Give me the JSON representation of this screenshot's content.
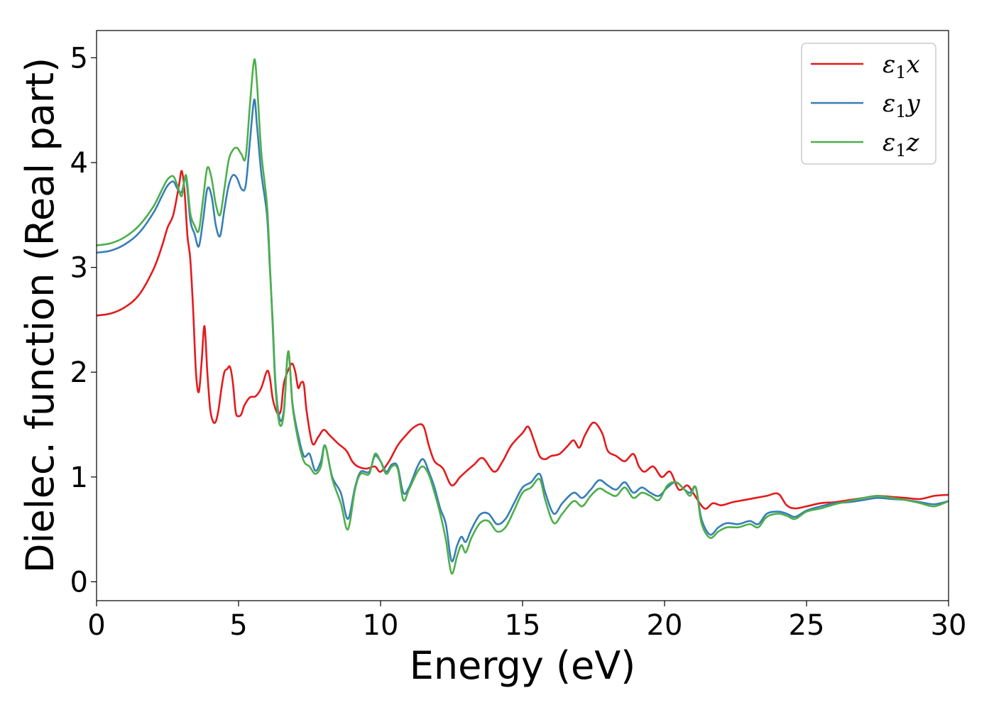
{
  "chart_data": {
    "type": "line",
    "title": "",
    "xlabel": "Energy (eV)",
    "ylabel": "Dielec. function (Real part)",
    "xlim": [
      0,
      30
    ],
    "ylim": [
      -0.18,
      5.26
    ],
    "xticks": [
      0,
      5,
      10,
      15,
      20,
      25,
      30
    ],
    "yticks": [
      0,
      1,
      2,
      3,
      4,
      5
    ],
    "grid": false,
    "legend_position": "top-right",
    "series": [
      {
        "name_base": "ε",
        "name_sub": "1",
        "name_suffix": "x",
        "color": "#e41a1c",
        "x": [
          0,
          0.5,
          1,
          1.5,
          2,
          2.3,
          2.5,
          2.7,
          2.9,
          3.0,
          3.1,
          3.2,
          3.3,
          3.4,
          3.5,
          3.6,
          3.7,
          3.8,
          3.9,
          4.0,
          4.1,
          4.2,
          4.3,
          4.4,
          4.5,
          4.6,
          4.7,
          4.8,
          4.9,
          5.0,
          5.1,
          5.2,
          5.4,
          5.6,
          5.8,
          6.0,
          6.1,
          6.2,
          6.3,
          6.4,
          6.5,
          6.6,
          6.8,
          6.9,
          7.0,
          7.1,
          7.2,
          7.3,
          7.4,
          7.6,
          7.8,
          8.0,
          8.2,
          8.5,
          8.8,
          9.0,
          9.2,
          9.5,
          9.8,
          10.0,
          10.3,
          10.6,
          10.9,
          11.2,
          11.5,
          11.7,
          11.9,
          12.2,
          12.5,
          12.8,
          13.0,
          13.3,
          13.6,
          14.0,
          14.3,
          14.6,
          15.0,
          15.2,
          15.4,
          15.6,
          15.8,
          16.0,
          16.3,
          16.6,
          16.8,
          17.0,
          17.2,
          17.5,
          17.8,
          18.0,
          18.3,
          18.6,
          18.9,
          19.1,
          19.3,
          19.6,
          19.9,
          20.2,
          20.5,
          20.8,
          21.0,
          21.4,
          21.7,
          22.0,
          22.4,
          22.8,
          23.2,
          23.6,
          24.0,
          24.3,
          24.6,
          25.0,
          25.5,
          26.0,
          26.5,
          27.0,
          27.5,
          28.0,
          28.5,
          29.0,
          29.5,
          30.0
        ],
        "y": [
          2.54,
          2.56,
          2.62,
          2.74,
          2.98,
          3.2,
          3.38,
          3.5,
          3.78,
          3.92,
          3.72,
          3.3,
          3.08,
          2.6,
          2.0,
          1.81,
          2.1,
          2.44,
          2.0,
          1.65,
          1.53,
          1.53,
          1.65,
          1.85,
          2.0,
          2.03,
          2.05,
          1.9,
          1.62,
          1.58,
          1.6,
          1.68,
          1.76,
          1.77,
          1.85,
          2.01,
          1.95,
          1.75,
          1.65,
          1.6,
          1.65,
          1.9,
          2.05,
          2.08,
          2.0,
          1.85,
          1.9,
          1.88,
          1.62,
          1.32,
          1.38,
          1.45,
          1.4,
          1.32,
          1.25,
          1.15,
          1.1,
          1.08,
          1.1,
          1.05,
          1.15,
          1.3,
          1.4,
          1.48,
          1.49,
          1.3,
          1.15,
          1.08,
          0.92,
          1.0,
          1.05,
          1.12,
          1.18,
          1.05,
          1.15,
          1.3,
          1.42,
          1.48,
          1.35,
          1.2,
          1.17,
          1.2,
          1.22,
          1.3,
          1.35,
          1.28,
          1.4,
          1.52,
          1.42,
          1.25,
          1.2,
          1.15,
          1.22,
          1.1,
          1.05,
          1.1,
          1.0,
          1.05,
          0.88,
          0.92,
          0.85,
          0.7,
          0.75,
          0.73,
          0.76,
          0.78,
          0.8,
          0.82,
          0.84,
          0.73,
          0.7,
          0.72,
          0.75,
          0.76,
          0.78,
          0.8,
          0.82,
          0.81,
          0.8,
          0.79,
          0.82,
          0.83
        ]
      },
      {
        "name_base": "ε",
        "name_sub": "1",
        "name_suffix": "y",
        "color": "#377eb8",
        "x": [
          0,
          0.5,
          1,
          1.5,
          2,
          2.3,
          2.5,
          2.7,
          2.85,
          3.0,
          3.15,
          3.3,
          3.45,
          3.6,
          3.75,
          3.9,
          4.05,
          4.2,
          4.35,
          4.5,
          4.65,
          4.8,
          4.95,
          5.1,
          5.25,
          5.4,
          5.55,
          5.65,
          5.8,
          6.0,
          6.1,
          6.2,
          6.3,
          6.45,
          6.6,
          6.75,
          6.9,
          7.1,
          7.3,
          7.5,
          7.7,
          7.9,
          8.05,
          8.3,
          8.6,
          8.85,
          9.1,
          9.3,
          9.6,
          9.8,
          10.0,
          10.2,
          10.4,
          10.6,
          10.8,
          11.0,
          11.3,
          11.5,
          11.7,
          11.9,
          12.1,
          12.3,
          12.5,
          12.7,
          12.85,
          13.0,
          13.2,
          13.5,
          13.8,
          14.1,
          14.4,
          14.7,
          15.0,
          15.3,
          15.6,
          15.8,
          16.1,
          16.4,
          16.8,
          17.1,
          17.4,
          17.7,
          18.0,
          18.3,
          18.6,
          18.9,
          19.2,
          19.5,
          19.8,
          20.1,
          20.4,
          20.7,
          20.9,
          21.1,
          21.3,
          21.6,
          21.9,
          22.2,
          22.6,
          23.0,
          23.3,
          23.6,
          24.0,
          24.3,
          24.6,
          25.0,
          25.5,
          26.0,
          26.5,
          27.0,
          27.5,
          28.0,
          28.5,
          29.0,
          29.5,
          30.0
        ],
        "y": [
          3.14,
          3.16,
          3.22,
          3.33,
          3.52,
          3.68,
          3.78,
          3.82,
          3.75,
          3.72,
          3.85,
          3.45,
          3.32,
          3.2,
          3.45,
          3.75,
          3.68,
          3.4,
          3.3,
          3.55,
          3.78,
          3.88,
          3.85,
          3.75,
          3.78,
          4.2,
          4.6,
          4.35,
          3.9,
          3.5,
          3.0,
          2.5,
          1.9,
          1.55,
          1.65,
          2.2,
          1.7,
          1.4,
          1.2,
          1.22,
          1.06,
          1.15,
          1.3,
          1.0,
          0.85,
          0.6,
          0.9,
          1.05,
          1.05,
          1.2,
          1.15,
          1.05,
          1.12,
          1.1,
          0.85,
          0.9,
          1.1,
          1.17,
          1.05,
          0.9,
          0.7,
          0.55,
          0.2,
          0.35,
          0.43,
          0.38,
          0.5,
          0.64,
          0.65,
          0.55,
          0.6,
          0.75,
          0.9,
          0.95,
          1.03,
          0.85,
          0.65,
          0.75,
          0.85,
          0.8,
          0.88,
          0.97,
          0.92,
          0.88,
          0.95,
          0.85,
          0.9,
          0.85,
          0.82,
          0.9,
          0.95,
          0.88,
          0.85,
          0.9,
          0.6,
          0.45,
          0.52,
          0.56,
          0.55,
          0.58,
          0.55,
          0.65,
          0.67,
          0.65,
          0.62,
          0.68,
          0.72,
          0.75,
          0.76,
          0.78,
          0.8,
          0.79,
          0.78,
          0.76,
          0.74,
          0.77
        ]
      },
      {
        "name_base": "ε",
        "name_sub": "1",
        "name_suffix": "z",
        "color": "#4daf4a",
        "x": [
          0,
          0.5,
          1,
          1.5,
          2,
          2.3,
          2.5,
          2.7,
          2.85,
          3.0,
          3.15,
          3.3,
          3.45,
          3.6,
          3.75,
          3.9,
          4.05,
          4.2,
          4.35,
          4.5,
          4.65,
          4.8,
          4.95,
          5.1,
          5.25,
          5.4,
          5.55,
          5.65,
          5.8,
          6.0,
          6.1,
          6.2,
          6.3,
          6.45,
          6.6,
          6.75,
          6.9,
          7.1,
          7.3,
          7.5,
          7.7,
          7.9,
          8.05,
          8.3,
          8.6,
          8.85,
          9.1,
          9.3,
          9.6,
          9.8,
          10.0,
          10.2,
          10.4,
          10.6,
          10.8,
          11.0,
          11.3,
          11.5,
          11.7,
          11.9,
          12.1,
          12.3,
          12.5,
          12.7,
          12.85,
          13.0,
          13.2,
          13.5,
          13.8,
          14.1,
          14.4,
          14.7,
          15.0,
          15.3,
          15.6,
          15.8,
          16.1,
          16.4,
          16.8,
          17.1,
          17.4,
          17.7,
          18.0,
          18.3,
          18.6,
          18.9,
          19.2,
          19.5,
          19.8,
          20.1,
          20.4,
          20.7,
          20.9,
          21.1,
          21.3,
          21.6,
          21.9,
          22.2,
          22.6,
          23.0,
          23.3,
          23.6,
          24.0,
          24.3,
          24.6,
          25.0,
          25.5,
          26.0,
          26.5,
          27.0,
          27.5,
          28.0,
          28.5,
          29.0,
          29.5,
          30.0
        ],
        "y": [
          3.21,
          3.23,
          3.29,
          3.4,
          3.58,
          3.74,
          3.84,
          3.87,
          3.78,
          3.68,
          3.88,
          3.52,
          3.4,
          3.35,
          3.65,
          3.95,
          3.85,
          3.6,
          3.5,
          3.75,
          4.02,
          4.12,
          4.14,
          4.08,
          4.05,
          4.55,
          4.98,
          4.75,
          4.1,
          3.6,
          3.05,
          2.45,
          1.85,
          1.5,
          1.62,
          2.2,
          1.68,
          1.35,
          1.15,
          1.1,
          1.03,
          1.1,
          1.3,
          0.98,
          0.75,
          0.5,
          0.88,
          1.03,
          1.03,
          1.22,
          1.15,
          1.03,
          1.1,
          1.08,
          0.78,
          0.88,
          1.05,
          1.1,
          1.02,
          0.85,
          0.65,
          0.4,
          0.08,
          0.25,
          0.35,
          0.28,
          0.42,
          0.56,
          0.58,
          0.48,
          0.52,
          0.68,
          0.85,
          0.9,
          0.98,
          0.78,
          0.56,
          0.65,
          0.77,
          0.72,
          0.82,
          0.89,
          0.85,
          0.82,
          0.9,
          0.8,
          0.85,
          0.82,
          0.78,
          0.92,
          0.95,
          0.88,
          0.82,
          0.9,
          0.56,
          0.42,
          0.48,
          0.52,
          0.52,
          0.55,
          0.52,
          0.62,
          0.65,
          0.63,
          0.6,
          0.67,
          0.7,
          0.74,
          0.77,
          0.8,
          0.82,
          0.8,
          0.78,
          0.75,
          0.72,
          0.77
        ]
      }
    ]
  }
}
